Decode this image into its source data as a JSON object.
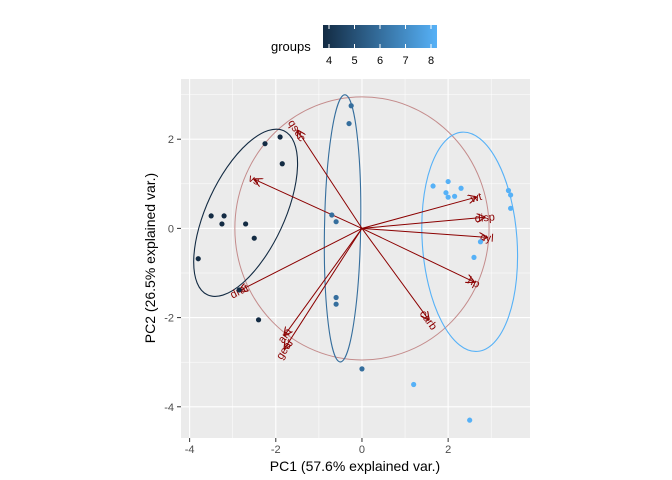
{
  "chart_data": {
    "type": "scatter",
    "title": "",
    "xlabel": "PC1 (57.6% explained var.)",
    "ylabel": "PC2 (26.5% explained var.)",
    "xlim": [
      -4.2,
      3.9
    ],
    "ylim": [
      -4.7,
      3.35
    ],
    "x_ticks": [
      -4,
      -2,
      0,
      2
    ],
    "y_ticks": [
      -4,
      -2,
      0,
      2
    ],
    "grid": true,
    "legend": {
      "title": "groups",
      "position": "top",
      "ticks": [
        4,
        5,
        6,
        7,
        8
      ],
      "low_color": "#132B43",
      "high_color": "#56B1F7"
    },
    "points": [
      {
        "x": -2.25,
        "y": 1.9,
        "group": 4
      },
      {
        "x": -1.9,
        "y": 2.05,
        "group": 4
      },
      {
        "x": -1.85,
        "y": 1.45,
        "group": 4
      },
      {
        "x": -3.5,
        "y": 0.28,
        "group": 4
      },
      {
        "x": -3.2,
        "y": 0.28,
        "group": 4
      },
      {
        "x": -3.25,
        "y": 0.1,
        "group": 4
      },
      {
        "x": -2.7,
        "y": 0.1,
        "group": 4
      },
      {
        "x": -2.5,
        "y": -0.22,
        "group": 4
      },
      {
        "x": -3.8,
        "y": -0.68,
        "group": 4
      },
      {
        "x": -2.85,
        "y": -1.38,
        "group": 4
      },
      {
        "x": -2.4,
        "y": -2.05,
        "group": 4
      },
      {
        "x": -0.25,
        "y": 2.75,
        "group": 6
      },
      {
        "x": -0.3,
        "y": 2.35,
        "group": 6
      },
      {
        "x": -0.7,
        "y": 0.3,
        "group": 6
      },
      {
        "x": -0.6,
        "y": 0.15,
        "group": 6
      },
      {
        "x": -0.6,
        "y": -1.55,
        "group": 6
      },
      {
        "x": -0.6,
        "y": -1.7,
        "group": 6
      },
      {
        "x": 0.0,
        "y": -3.15,
        "group": 6
      },
      {
        "x": 1.65,
        "y": 0.95,
        "group": 8
      },
      {
        "x": 2.0,
        "y": 1.05,
        "group": 8
      },
      {
        "x": 2.3,
        "y": 0.9,
        "group": 8
      },
      {
        "x": 1.95,
        "y": 0.8,
        "group": 8
      },
      {
        "x": 2.0,
        "y": 0.7,
        "group": 8
      },
      {
        "x": 2.15,
        "y": 0.72,
        "group": 8
      },
      {
        "x": 3.4,
        "y": 0.85,
        "group": 8
      },
      {
        "x": 3.45,
        "y": 0.75,
        "group": 8
      },
      {
        "x": 3.45,
        "y": 0.45,
        "group": 8
      },
      {
        "x": 2.75,
        "y": -0.3,
        "group": 8
      },
      {
        "x": 2.6,
        "y": -0.65,
        "group": 8
      },
      {
        "x": 1.2,
        "y": -3.5,
        "group": 8
      },
      {
        "x": 2.5,
        "y": -4.3,
        "group": 8
      }
    ],
    "loadings": [
      {
        "name": "qsec",
        "x": -1.5,
        "y": 2.2
      },
      {
        "name": "vs",
        "x": -2.5,
        "y": 1.1
      },
      {
        "name": "wt",
        "x": 2.65,
        "y": 0.7
      },
      {
        "name": "disp",
        "x": 2.85,
        "y": 0.25
      },
      {
        "name": "cyl",
        "x": 2.9,
        "y": -0.2
      },
      {
        "name": "hp",
        "x": 2.6,
        "y": -1.2
      },
      {
        "name": "carb",
        "x": 1.55,
        "y": -2.05
      },
      {
        "name": "drat",
        "x": -2.85,
        "y": -1.4
      },
      {
        "name": "am",
        "x": -1.8,
        "y": -2.4
      },
      {
        "name": "gear",
        "x": -1.8,
        "y": -2.7
      }
    ],
    "correlation_circle_radius": 2.95,
    "group_ellipses": [
      {
        "group": 4,
        "cx": -2.7,
        "cy": 0.35,
        "rx": 2.1,
        "ry": 0.9,
        "angle_deg": 65
      },
      {
        "group": 6,
        "cx": -0.45,
        "cy": 0.0,
        "rx": 3.1,
        "ry": 0.42,
        "angle_deg": 89
      },
      {
        "group": 8,
        "cx": 2.5,
        "cy": -0.3,
        "rx": 2.55,
        "ry": 1.1,
        "angle_deg": 94
      }
    ],
    "colors": {
      "panel": "#EBEBEB",
      "grid": "#FFFFFF",
      "arrow": "#8B0000",
      "circle": "#C48C8C"
    }
  }
}
